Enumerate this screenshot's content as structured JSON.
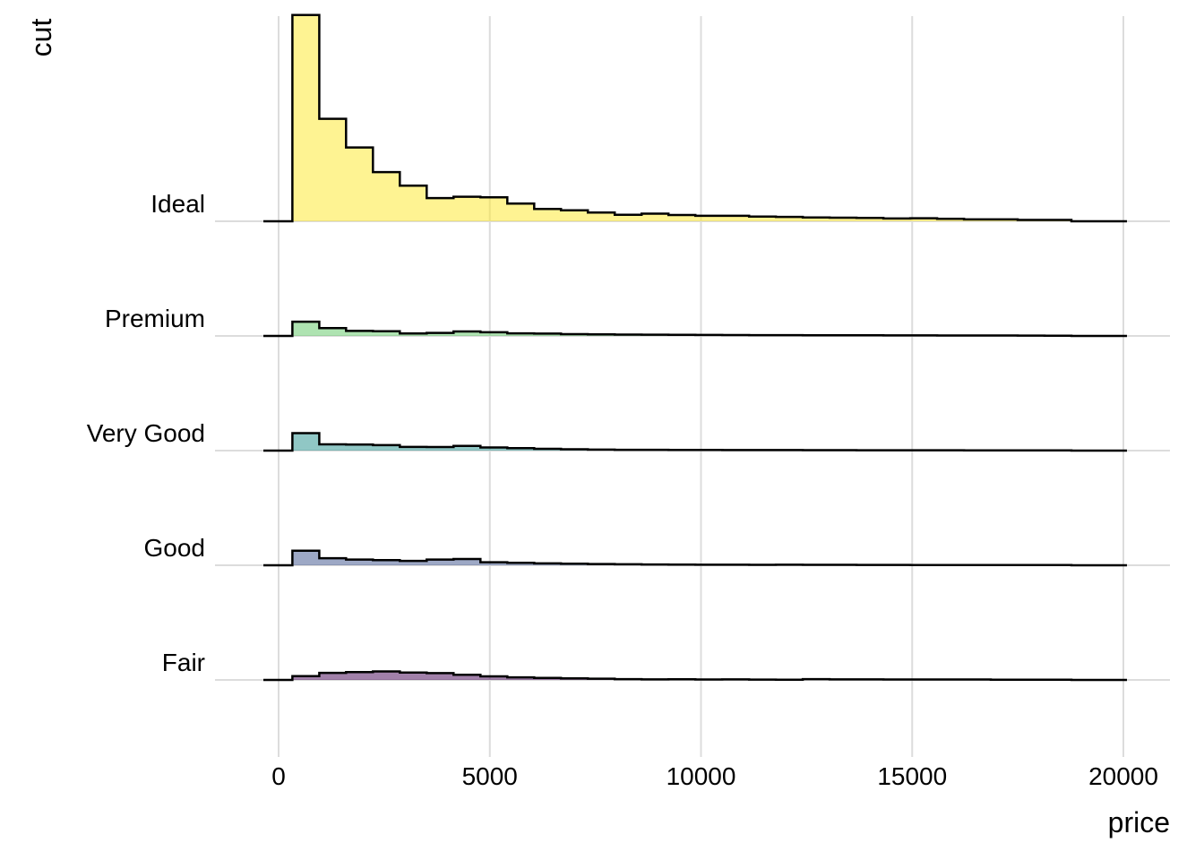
{
  "chart_data": {
    "type": "histogram-ridgeline",
    "xlabel": "price",
    "ylabel": "cut",
    "xlim": [
      -500,
      21000
    ],
    "x_ticks": [
      0,
      5000,
      10000,
      15000,
      20000
    ],
    "x_tick_labels": [
      "0",
      "5000",
      "10000",
      "15000",
      "20000"
    ],
    "grid": true,
    "legend": "none",
    "bin_width": 636,
    "bin_edges_start": 326,
    "series": [
      {
        "name": "Fair",
        "color": "#440154",
        "values": [
          0.14,
          0.26,
          0.29,
          0.31,
          0.27,
          0.25,
          0.19,
          0.13,
          0.095,
          0.075,
          0.06,
          0.045,
          0.03,
          0.02,
          0.025,
          0.015,
          0.02,
          0.012,
          0.005,
          0.03,
          0.02,
          0.02,
          0.018,
          0.017,
          0.016,
          0.015,
          0.005,
          0.007,
          0.005
        ]
      },
      {
        "name": "Good",
        "color": "#3b528b",
        "values": [
          0.53,
          0.26,
          0.21,
          0.19,
          0.16,
          0.21,
          0.23,
          0.11,
          0.09,
          0.07,
          0.06,
          0.045,
          0.035,
          0.03,
          0.025,
          0.02,
          0.02,
          0.015,
          0.02,
          0.015,
          0.015,
          0.013,
          0.012,
          0.01,
          0.01,
          0.01,
          0.01,
          0.008,
          0.006
        ]
      },
      {
        "name": "Very Good",
        "color": "#21908c",
        "values": [
          0.64,
          0.23,
          0.22,
          0.2,
          0.135,
          0.13,
          0.17,
          0.115,
          0.09,
          0.065,
          0.05,
          0.035,
          0.03,
          0.028,
          0.025,
          0.024,
          0.021,
          0.02,
          0.019,
          0.018,
          0.016,
          0.014,
          0.013,
          0.012,
          0.012,
          0.011,
          0.01,
          0.009,
          0.006
        ]
      },
      {
        "name": "Premium",
        "color": "#5dc863",
        "values": [
          0.52,
          0.29,
          0.185,
          0.17,
          0.09,
          0.11,
          0.165,
          0.135,
          0.095,
          0.085,
          0.065,
          0.055,
          0.05,
          0.045,
          0.04,
          0.036,
          0.032,
          0.03,
          0.028,
          0.026,
          0.025,
          0.024,
          0.02,
          0.02,
          0.018,
          0.017,
          0.015,
          0.014,
          0.011
        ]
      },
      {
        "name": "Ideal",
        "color": "#fde725",
        "values": [
          7.55,
          3.75,
          2.7,
          1.8,
          1.3,
          0.85,
          0.9,
          0.88,
          0.65,
          0.45,
          0.4,
          0.32,
          0.24,
          0.28,
          0.23,
          0.2,
          0.2,
          0.17,
          0.16,
          0.14,
          0.13,
          0.12,
          0.1,
          0.11,
          0.09,
          0.07,
          0.07,
          0.05,
          0.05
        ]
      }
    ]
  }
}
